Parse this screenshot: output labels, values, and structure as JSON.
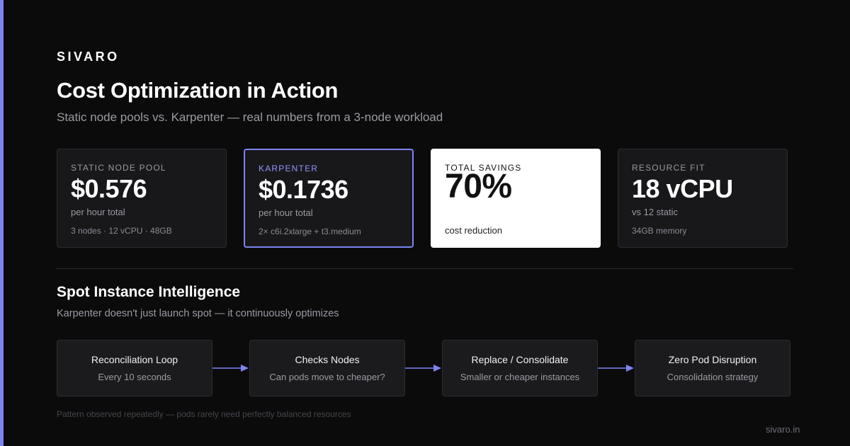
{
  "brand": "SIVARO",
  "title": "Cost Optimization in Action",
  "subtitle": "Static node pools vs. Karpenter — real numbers from a 3-node workload",
  "colors": {
    "accent": "#7c85f0",
    "background": "#0b0b0c",
    "card": "#18181b"
  },
  "cards": [
    {
      "label": "STATIC NODE POOL",
      "value": "$0.576",
      "unit": "per hour total",
      "detail": "3 nodes · 12 vCPU · 48GB"
    },
    {
      "label": "KARPENTER",
      "value": "$0.1736",
      "unit": "per hour total",
      "detail": "2× c6i.2xlarge + t3.medium"
    },
    {
      "label": "TOTAL SAVINGS",
      "value": "70%",
      "detail": "cost reduction"
    },
    {
      "label": "RESOURCE FIT",
      "value": "18 vCPU",
      "unit": "vs 12 static",
      "detail": "34GB memory"
    }
  ],
  "section": {
    "title": "Spot Instance Intelligence",
    "subtitle": "Karpenter doesn't just launch spot — it continuously optimizes"
  },
  "flow": [
    {
      "name": "Reconciliation Loop",
      "desc": "Every 10 seconds"
    },
    {
      "name": "Checks Nodes",
      "desc": "Can pods move to cheaper?"
    },
    {
      "name": "Replace / Consolidate",
      "desc": "Smaller or cheaper instances"
    },
    {
      "name": "Zero Pod Disruption",
      "desc": "Consolidation strategy"
    }
  ],
  "footnote": "Pattern observed repeatedly — pods rarely need perfectly balanced resources",
  "site": "sivaro.in"
}
